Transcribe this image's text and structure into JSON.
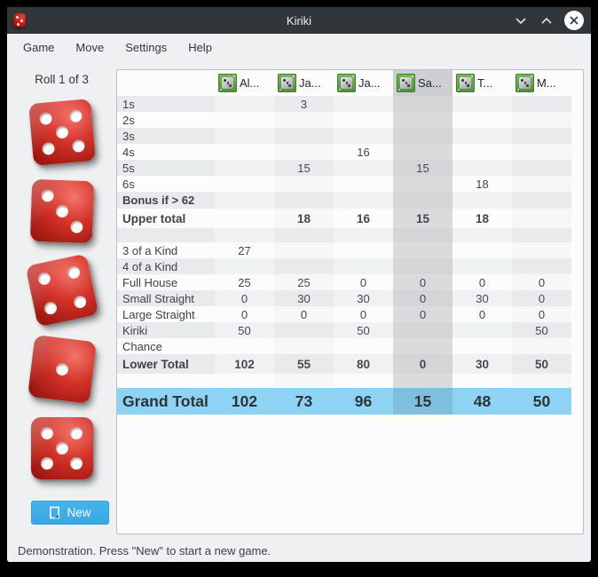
{
  "window": {
    "title": "Kiriki"
  },
  "menubar": {
    "items": [
      "Game",
      "Move",
      "Settings",
      "Help"
    ]
  },
  "left_panel": {
    "roll_label": "Roll 1 of 3",
    "dice": [
      5,
      3,
      4,
      1,
      5
    ],
    "new_button": "New"
  },
  "table": {
    "players": [
      "Al...",
      "Ja...",
      "Ja...",
      "Sa...",
      "T...",
      "M..."
    ],
    "current_player_index": 3,
    "rows": [
      {
        "label": "1s",
        "type": "normal",
        "values": [
          "",
          "3",
          "",
          "",
          "",
          ""
        ]
      },
      {
        "label": "2s",
        "type": "normal",
        "values": [
          "",
          "",
          "",
          "",
          "",
          ""
        ]
      },
      {
        "label": "3s",
        "type": "normal",
        "values": [
          "",
          "",
          "",
          "",
          "",
          ""
        ]
      },
      {
        "label": "4s",
        "type": "normal",
        "values": [
          "",
          "",
          "16",
          "",
          "",
          ""
        ]
      },
      {
        "label": "5s",
        "type": "normal",
        "values": [
          "",
          "15",
          "",
          "15",
          "",
          ""
        ]
      },
      {
        "label": "6s",
        "type": "normal",
        "values": [
          "",
          "",
          "",
          "",
          "18",
          ""
        ]
      },
      {
        "label": "Bonus if > 62",
        "type": "bonus",
        "values": [
          "",
          "",
          "",
          "",
          "",
          ""
        ]
      },
      {
        "label": "Upper total",
        "type": "total",
        "values": [
          "",
          "18",
          "16",
          "15",
          "18",
          ""
        ]
      },
      {
        "label": "",
        "type": "spacer",
        "values": [
          "",
          "",
          "",
          "",
          "",
          ""
        ]
      },
      {
        "label": "3 of a Kind",
        "type": "normal",
        "values": [
          "27",
          "",
          "",
          "",
          "",
          ""
        ]
      },
      {
        "label": "4 of a Kind",
        "type": "normal",
        "values": [
          "",
          "",
          "",
          "",
          "",
          ""
        ]
      },
      {
        "label": "Full House",
        "type": "normal",
        "values": [
          "25",
          "25",
          "0",
          "0",
          "0",
          "0"
        ]
      },
      {
        "label": "Small Straight",
        "type": "normal",
        "values": [
          "0",
          "30",
          "30",
          "0",
          "30",
          "0"
        ]
      },
      {
        "label": "Large Straight",
        "type": "normal",
        "values": [
          "0",
          "0",
          "0",
          "0",
          "0",
          "0"
        ]
      },
      {
        "label": "Kiriki",
        "type": "normal",
        "values": [
          "50",
          "",
          "50",
          "",
          "",
          "50"
        ]
      },
      {
        "label": "Chance",
        "type": "normal",
        "values": [
          "",
          "",
          "",
          "",
          "",
          ""
        ]
      },
      {
        "label": "Lower Total",
        "type": "total",
        "values": [
          "102",
          "55",
          "80",
          "0",
          "30",
          "50"
        ]
      },
      {
        "label": "",
        "type": "spacer",
        "values": [
          "",
          "",
          "",
          "",
          "",
          ""
        ]
      },
      {
        "label": "Grand Total",
        "type": "grand",
        "values": [
          "102",
          "73",
          "96",
          "15",
          "48",
          "50"
        ]
      }
    ]
  },
  "statusbar": {
    "text": "Demonstration. Press \"New\" to start a new game."
  },
  "colors": {
    "accent": "#3daee9",
    "titlebar_bg": "#31363b",
    "grand_total_bg": "#8ed3f4",
    "grand_total_current_bg": "#7fbedd",
    "current_column_bg": "#d4d5d6",
    "die_red": "#d4332a"
  }
}
